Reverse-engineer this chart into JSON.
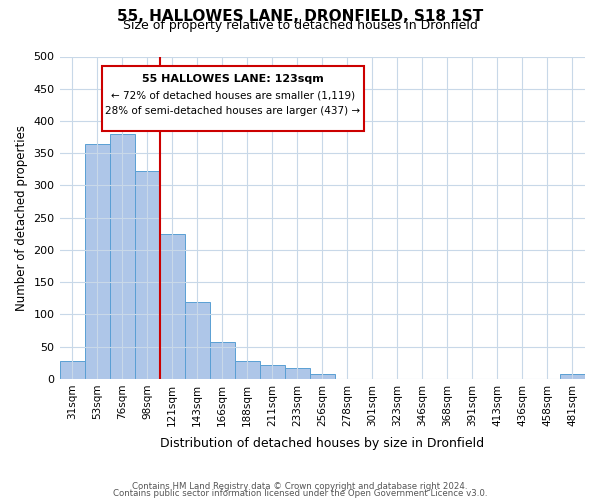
{
  "title": "55, HALLOWES LANE, DRONFIELD, S18 1ST",
  "subtitle": "Size of property relative to detached houses in Dronfield",
  "xlabel": "Distribution of detached houses by size in Dronfield",
  "ylabel": "Number of detached properties",
  "bar_labels": [
    "31sqm",
    "53sqm",
    "76sqm",
    "98sqm",
    "121sqm",
    "143sqm",
    "166sqm",
    "188sqm",
    "211sqm",
    "233sqm",
    "256sqm",
    "278sqm",
    "301sqm",
    "323sqm",
    "346sqm",
    "368sqm",
    "391sqm",
    "413sqm",
    "436sqm",
    "458sqm",
    "481sqm"
  ],
  "bar_values": [
    27,
    365,
    380,
    323,
    225,
    120,
    57,
    27,
    22,
    17,
    7,
    0,
    0,
    0,
    0,
    0,
    0,
    0,
    0,
    0,
    7
  ],
  "bar_color": "#aec6e8",
  "bar_edge_color": "#5a9fd4",
  "vline_color": "#cc0000",
  "vline_pos": 4.5,
  "annotation_title": "55 HALLOWES LANE: 123sqm",
  "annotation_line1": "← 72% of detached houses are smaller (1,119)",
  "annotation_line2": "28% of semi-detached houses are larger (437) →",
  "annotation_box_color": "#cc0000",
  "ylim": [
    0,
    500
  ],
  "yticks": [
    0,
    50,
    100,
    150,
    200,
    250,
    300,
    350,
    400,
    450,
    500
  ],
  "footer_line1": "Contains HM Land Registry data © Crown copyright and database right 2024.",
  "footer_line2": "Contains public sector information licensed under the Open Government Licence v3.0.",
  "bg_color": "#ffffff",
  "grid_color": "#c8d8e8"
}
